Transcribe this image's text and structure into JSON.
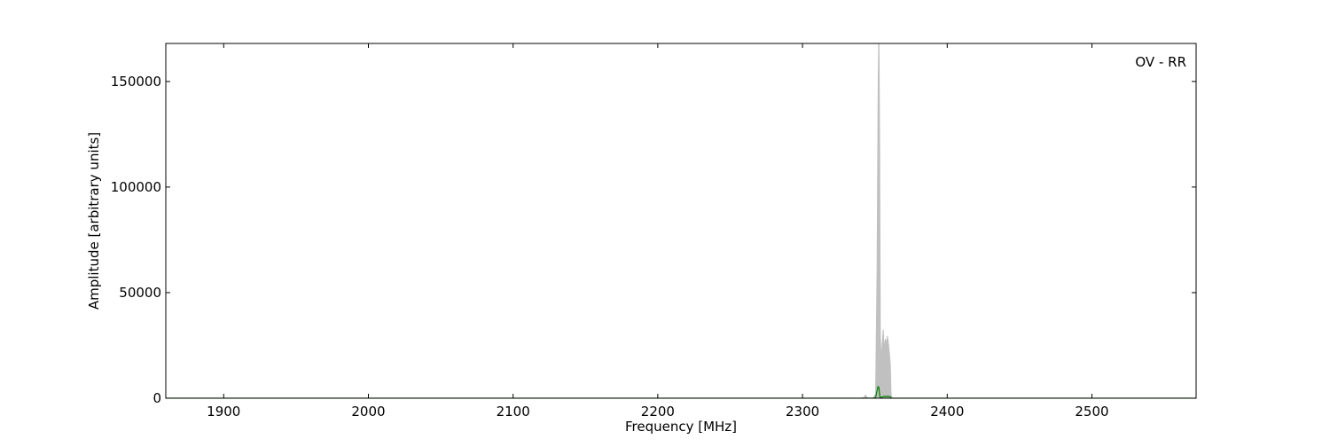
{
  "chart_data": {
    "type": "area",
    "title": "",
    "annotation": "OV - RR",
    "xlabel": "Frequency [MHz]",
    "ylabel": "Amplitude [arbitrary units]",
    "xlim": [
      1860,
      2572
    ],
    "ylim": [
      0,
      168000
    ],
    "xticks": [
      1900,
      2000,
      2100,
      2200,
      2300,
      2400,
      2500
    ],
    "yticks": [
      0,
      50000,
      100000,
      150000
    ],
    "grid": false,
    "colors": {
      "fill": "#c0c0c0",
      "line": "#008000",
      "axes": "#000000"
    },
    "series": [
      {
        "style": "filled",
        "color": "#c0c0c0",
        "x": [
          1860,
          2340,
          2342.5,
          2343.5,
          2344.5,
          2346,
          2349,
          2350.5,
          2351.5,
          2352.3,
          2352.8,
          2353.3,
          2353.8,
          2354.3,
          2355,
          2355.8,
          2356.5,
          2357.2,
          2358,
          2358.7,
          2359.5,
          2360.2,
          2360.7,
          2361.2,
          2362,
          2572
        ],
        "y": [
          0,
          0,
          300,
          1500,
          300,
          0,
          200,
          2000,
          60000,
          150000,
          175000,
          120000,
          30000,
          18000,
          25000,
          32500,
          22000,
          28000,
          26000,
          29500,
          25000,
          20000,
          16000,
          2000,
          0,
          0
        ]
      },
      {
        "style": "line",
        "color": "#008000",
        "x": [
          1860,
          2349,
          2350.5,
          2351.5,
          2352.2,
          2352.8,
          2353.4,
          2354,
          2356,
          2359,
          2360.5,
          2361.5,
          2572
        ],
        "y": [
          0,
          0,
          300,
          3500,
          5500,
          5000,
          800,
          300,
          800,
          900,
          700,
          0,
          0
        ]
      }
    ]
  }
}
